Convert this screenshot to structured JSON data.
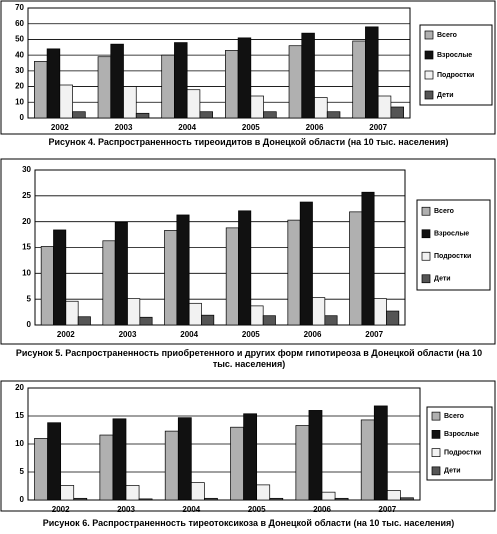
{
  "chart_data": [
    {
      "type": "bar",
      "title": "Рисунок 4. Распространенность тиреоидитов в Донецкой области (на 10 тыс. населения)",
      "categories": [
        "2002",
        "2003",
        "2004",
        "2005",
        "2006",
        "2007"
      ],
      "series": [
        {
          "name": "Всего",
          "color": "#b0b0b0",
          "values": [
            36,
            39,
            40,
            43,
            46,
            49
          ]
        },
        {
          "name": "Взрослые",
          "color": "#111111",
          "values": [
            44,
            47,
            48,
            51,
            54,
            58
          ]
        },
        {
          "name": "Подростки",
          "color": "#f2f2f2",
          "values": [
            21,
            20,
            18,
            14,
            13,
            14
          ]
        },
        {
          "name": "Дети",
          "color": "#555555",
          "values": [
            4,
            3,
            4,
            4,
            4,
            7
          ]
        }
      ],
      "ylim": [
        0,
        70
      ],
      "yticks": [
        0,
        10,
        20,
        30,
        40,
        50,
        60,
        70
      ],
      "grid": true,
      "legend": "right"
    },
    {
      "type": "bar",
      "title": "Рисунок 5. Распространенность приобретенного и других форм гипотиреоза в Донецкой области (на 10 тыс. населения)",
      "categories": [
        "2002",
        "2003",
        "2004",
        "2005",
        "2006",
        "2007"
      ],
      "series": [
        {
          "name": "Всего",
          "color": "#b0b0b0",
          "values": [
            15.2,
            16.3,
            18.3,
            18.8,
            20.3,
            21.9
          ]
        },
        {
          "name": "Взрослые",
          "color": "#111111",
          "values": [
            18.4,
            19.9,
            21.3,
            22.1,
            23.8,
            25.7
          ]
        },
        {
          "name": "Подростки",
          "color": "#f2f2f2",
          "values": [
            4.6,
            5.1,
            4.2,
            3.7,
            5.3,
            5.1
          ]
        },
        {
          "name": "Дети",
          "color": "#555555",
          "values": [
            1.6,
            1.5,
            1.9,
            1.8,
            1.8,
            2.7
          ]
        }
      ],
      "ylim": [
        0,
        30
      ],
      "yticks": [
        0,
        5,
        10,
        15,
        20,
        25,
        30
      ],
      "grid": true,
      "legend": "right"
    },
    {
      "type": "bar",
      "title": "Рисунок 6. Распространенность тиреотоксикоза в Донецкой области (на 10 тыс. населения)",
      "categories": [
        "2002",
        "2003",
        "2004",
        "2005",
        "2006",
        "2007"
      ],
      "series": [
        {
          "name": "Всего",
          "color": "#b0b0b0",
          "values": [
            11,
            11.6,
            12.3,
            13,
            13.3,
            14.3
          ]
        },
        {
          "name": "Взрослые",
          "color": "#111111",
          "values": [
            13.8,
            14.5,
            14.7,
            15.4,
            16,
            16.8
          ]
        },
        {
          "name": "Подростки",
          "color": "#f2f2f2",
          "values": [
            2.6,
            2.6,
            3.1,
            2.7,
            1.4,
            1.7
          ]
        },
        {
          "name": "Дети",
          "color": "#555555",
          "values": [
            0.3,
            0.2,
            0.3,
            0.3,
            0.3,
            0.4
          ]
        }
      ],
      "ylim": [
        0,
        20
      ],
      "yticks": [
        0,
        5,
        10,
        15,
        20
      ],
      "grid": true,
      "legend": "right"
    }
  ]
}
